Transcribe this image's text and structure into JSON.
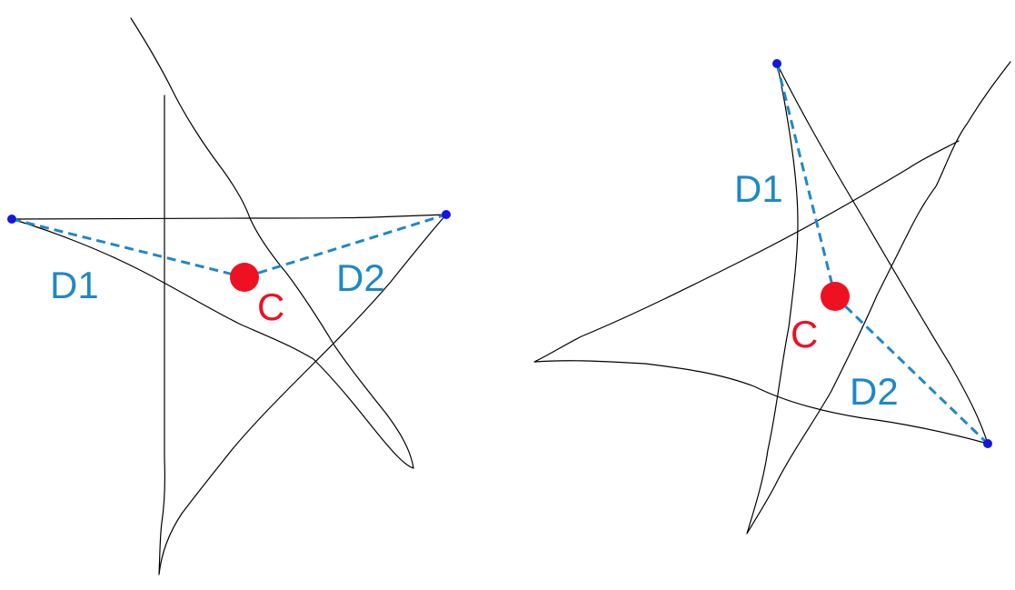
{
  "colors": {
    "stroke": "#000000",
    "distance": "#1e88c8",
    "endpoint": "#1515e0",
    "center": "#ee1122"
  },
  "left_star": {
    "d1_label": "D1",
    "d2_label": "D2",
    "center_label": "C"
  },
  "right_star": {
    "d1_label": "D1",
    "d2_label": "D2",
    "center_label": "C"
  }
}
